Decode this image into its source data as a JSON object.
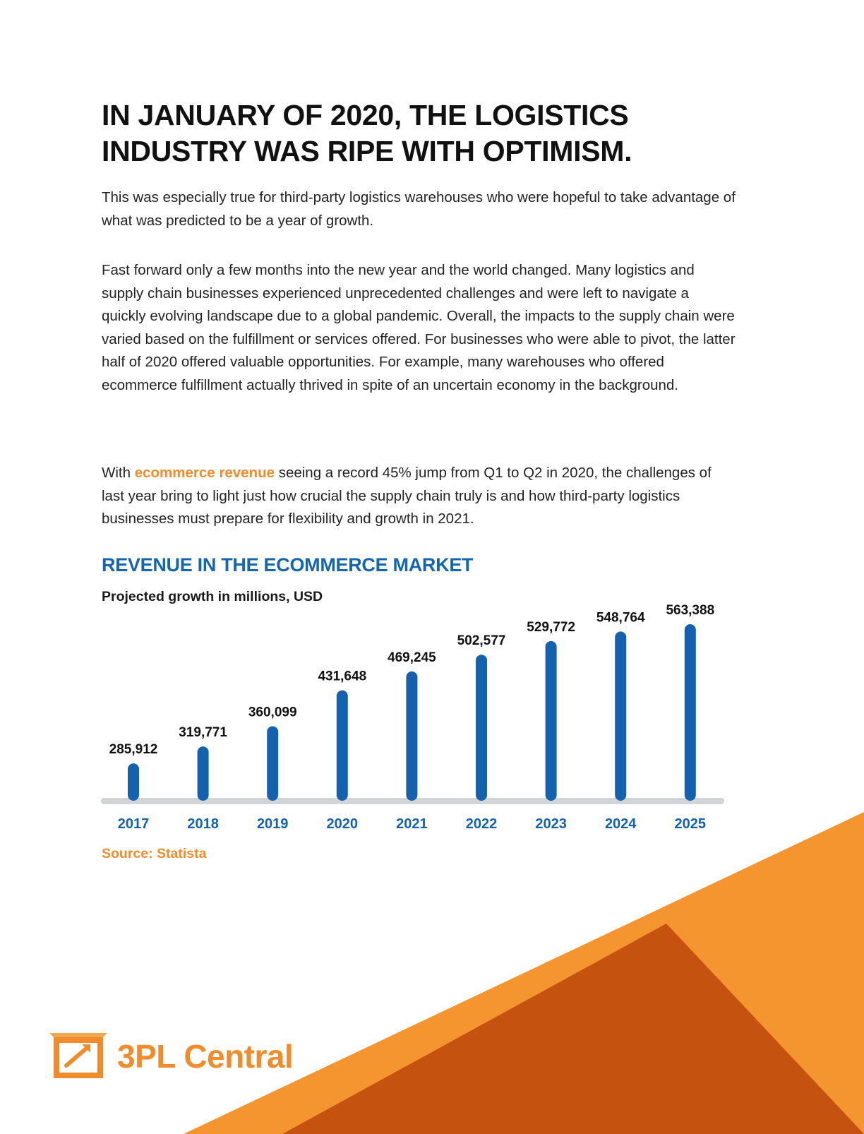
{
  "heading": "IN JANUARY OF 2020, THE LOGISTICS INDUSTRY WAS RIPE WITH OPTIMISM.",
  "paragraph1": "This was especially true for third-party logistics warehouses who were hopeful to take advantage of what was predicted to be a year of growth.",
  "paragraph2": "Fast forward only a few months into the new year and the world changed. Many logistics and supply chain businesses experienced unprecedented challenges and were left to navigate a quickly evolving landscape due to a global pandemic. Overall, the impacts to the supply chain were varied based on the fulfillment or services offered. For businesses who were able to pivot, the latter half of 2020 offered valuable opportunities. For example, many warehouses who offered ecommerce fulfillment actually thrived in spite of an uncertain economy in the background.",
  "paragraph3": {
    "before": "With ",
    "link": "ecommerce revenue",
    "after": " seeing a record 45% jump from Q1 to Q2 in 2020, the challenges of last year bring to light just how crucial the supply chain truly is and how third-party logistics businesses must prepare for flexibility and growth in 2021."
  },
  "colors": {
    "bar": "#1462ae",
    "accent_orange": "#f08c2b",
    "dark_orange": "#c4510e",
    "axis": "#d3d4d6"
  },
  "chart_data": {
    "type": "bar",
    "title": "REVENUE IN THE ECOMMERCE MARKET",
    "subtitle": "Projected growth in millions, USD",
    "categories": [
      "2017",
      "2018",
      "2019",
      "2020",
      "2021",
      "2022",
      "2023",
      "2024",
      "2025"
    ],
    "values": [
      285912,
      319771,
      360099,
      431648,
      469245,
      502577,
      529772,
      548764,
      563388
    ],
    "value_labels": [
      "285,912",
      "319,771",
      "360,099",
      "431,648",
      "469,245",
      "502,577",
      "529,772",
      "548,764",
      "563,388"
    ],
    "grid": false,
    "source": "Source: Statista"
  },
  "logo": {
    "text": "3PL Central",
    "icon": "package-box-icon"
  }
}
